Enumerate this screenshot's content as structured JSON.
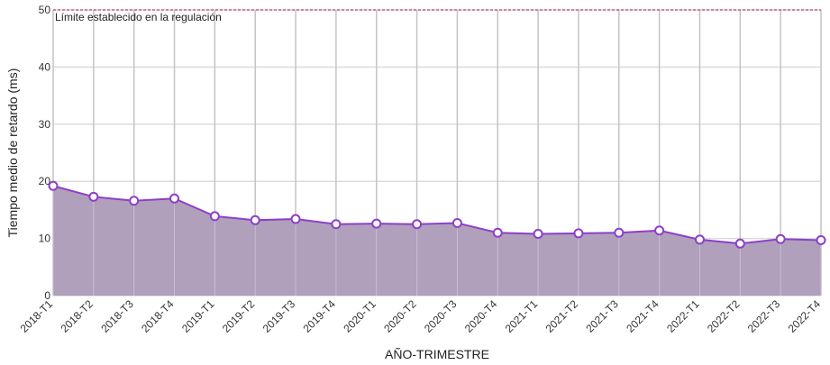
{
  "chart_data": {
    "type": "area",
    "title": "",
    "xlabel": "AÑO-TRIMESTRE",
    "ylabel": "Tiempo medio de retardo (ms)",
    "ylim": [
      0,
      50
    ],
    "yticks": [
      0,
      10,
      20,
      30,
      40,
      50
    ],
    "grid": true,
    "legend": "none",
    "categories": [
      "2018-T1",
      "2018-T2",
      "2018-T3",
      "2018-T4",
      "2019-T1",
      "2019-T2",
      "2019-T3",
      "2019-T4",
      "2020-T1",
      "2020-T2",
      "2020-T3",
      "2020-T4",
      "2021-T1",
      "2021-T2",
      "2021-T3",
      "2021-T4",
      "2022-T1",
      "2022-T2",
      "2022-T3",
      "2022-T4"
    ],
    "values": [
      19.2,
      17.3,
      16.6,
      17.0,
      13.9,
      13.2,
      13.4,
      12.5,
      12.6,
      12.5,
      12.7,
      11.0,
      10.8,
      10.9,
      11.0,
      11.4,
      9.8,
      9.1,
      9.9,
      9.7
    ],
    "reference_line": {
      "value": 50,
      "label": "Límite establecido en la regulación",
      "color": "#c2185b"
    },
    "colors": {
      "line": "#8e3fc8",
      "fill": "#b0a0bc",
      "marker_fill": "#ffffff"
    }
  }
}
